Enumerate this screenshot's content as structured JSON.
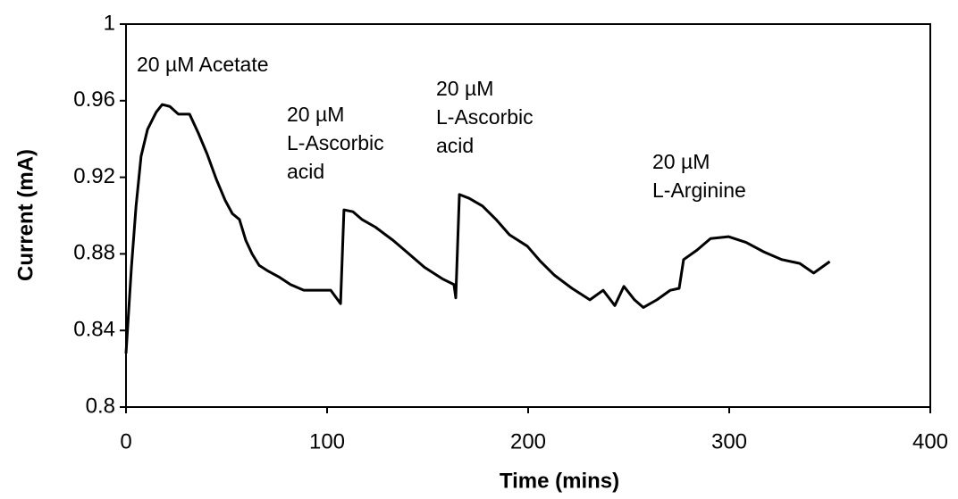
{
  "chart_data": {
    "type": "line",
    "x_label": "Time (mins)",
    "y_label": "Current (mA)",
    "xlim": [
      0,
      400
    ],
    "xticks": [
      0,
      100,
      200,
      300,
      400
    ],
    "ylim": [
      0.8,
      1
    ],
    "yticks": [
      0.8,
      0.84,
      0.88,
      0.92,
      0.96,
      1
    ],
    "grid": false,
    "annotations": [
      [
        "20 µM Acetate"
      ],
      [
        "20 µM",
        "L-Ascorbic",
        "acid"
      ],
      [
        "20 µM",
        "L-Ascorbic",
        "acid"
      ],
      [
        "20 µM",
        "L-Arginine"
      ]
    ],
    "series": [
      {
        "color": "#000000",
        "x": [
          0,
          2.7,
          5,
          7.5,
          10.7,
          15,
          18,
          21.8,
          26,
          31.6,
          36,
          40.4,
          44.9,
          49.3,
          52.9,
          56.4,
          59.6,
          62.7,
          66.2,
          70.7,
          76,
          81.8,
          88.4,
          95.1,
          101.8,
          106.7,
          108.4,
          112.9,
          117.3,
          124,
          132.9,
          139.6,
          148.4,
          157.3,
          163.1,
          164,
          165.8,
          170.7,
          177.3,
          184,
          190.7,
          199.6,
          206.2,
          212.9,
          221.8,
          230.7,
          237.3,
          243.1,
          247.6,
          252.9,
          257.3,
          264,
          270.7,
          275.1,
          277.3,
          284,
          290.7,
          299.6,
          308.4,
          317.3,
          326.2,
          335.1,
          342,
          350
        ],
        "values": [
          0.828,
          0.873,
          0.905,
          0.931,
          0.945,
          0.954,
          0.958,
          0.957,
          0.953,
          0.953,
          0.943,
          0.932,
          0.919,
          0.908,
          0.901,
          0.898,
          0.887,
          0.88,
          0.874,
          0.871,
          0.868,
          0.864,
          0.861,
          0.861,
          0.861,
          0.854,
          0.903,
          0.902,
          0.898,
          0.894,
          0.887,
          0.881,
          0.873,
          0.867,
          0.864,
          0.857,
          0.911,
          0.909,
          0.905,
          0.898,
          0.89,
          0.884,
          0.876,
          0.869,
          0.862,
          0.856,
          0.861,
          0.853,
          0.863,
          0.856,
          0.852,
          0.856,
          0.861,
          0.862,
          0.877,
          0.882,
          0.888,
          0.889,
          0.886,
          0.881,
          0.877,
          0.875,
          0.87,
          0.876
        ]
      }
    ]
  }
}
